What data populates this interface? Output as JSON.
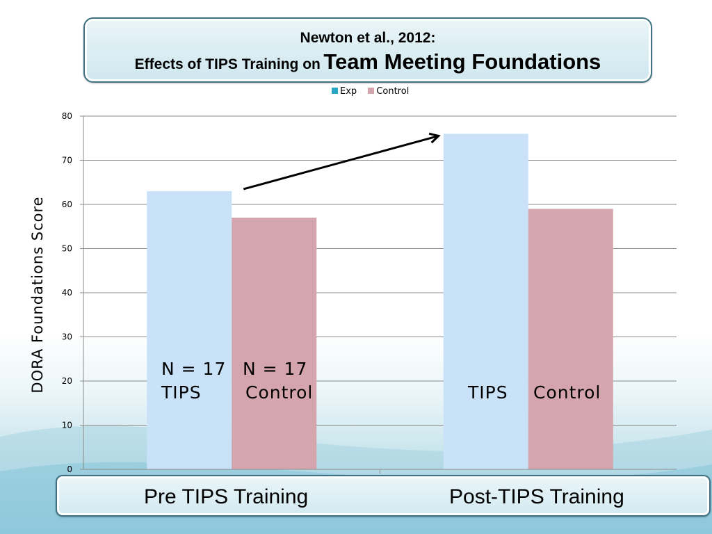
{
  "title": {
    "line1": "Newton et al., 2012:",
    "line2_prefix": "Effects of TIPS Training on",
    "line2_emphasis": "Team Meeting Foundations"
  },
  "colors": {
    "exp": "#c9e2f8",
    "control": "#d4a5ad",
    "legend_exp": "#2aa6c4",
    "legend_control": "#d4a5ad"
  },
  "chart_data": {
    "type": "bar",
    "categories": [
      "Pre TIPS Training",
      "Post-TIPS Training"
    ],
    "series": [
      {
        "name": "Exp",
        "values": [
          63,
          76
        ]
      },
      {
        "name": "Control",
        "values": [
          57,
          59
        ]
      }
    ],
    "ylabel": "DORA Foundations Score",
    "ylim": [
      0,
      80
    ],
    "yticks": [
      "0",
      "10",
      "20",
      "30",
      "40",
      "50",
      "60",
      "70",
      "80"
    ],
    "grid": true,
    "legend": "top-center",
    "annotations": {
      "pre_exp_n": "N = 17",
      "pre_exp_label": "TIPS",
      "pre_ctrl_n": "N = 17",
      "pre_ctrl_label": "Control",
      "post_exp_label": "TIPS",
      "post_ctrl_label": "Control"
    }
  }
}
